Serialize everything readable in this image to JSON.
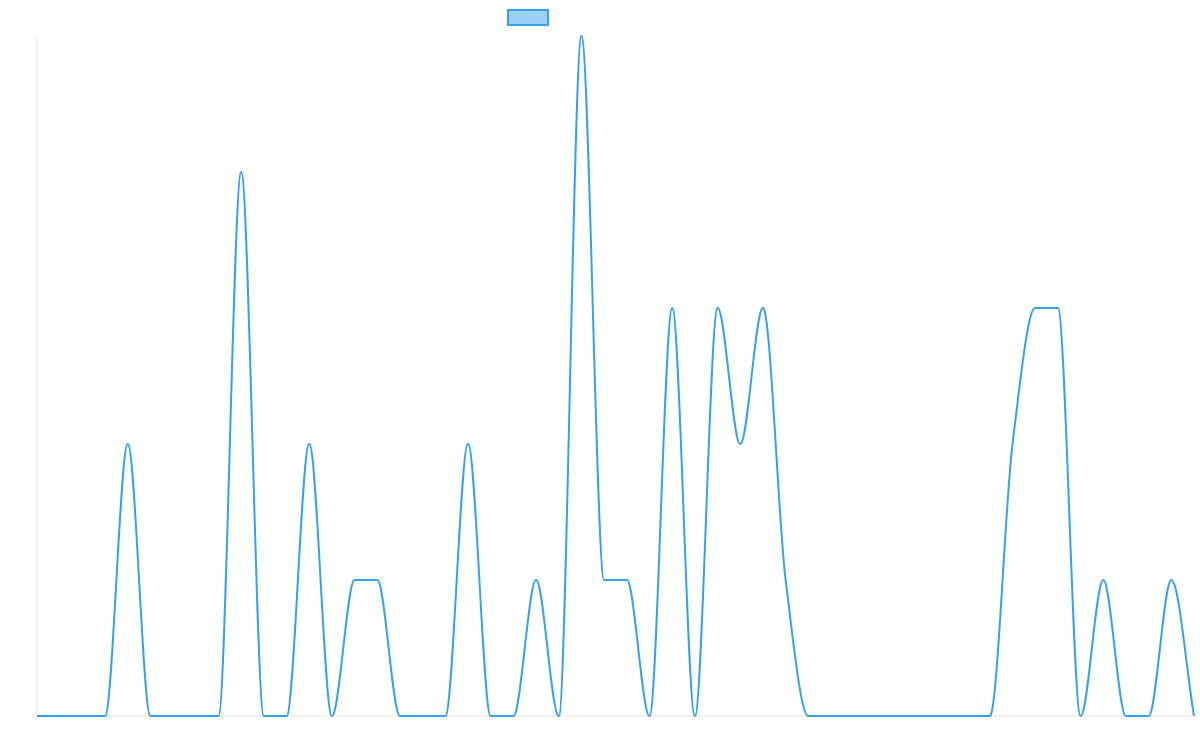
{
  "chart_data": {
    "type": "line",
    "categories": [
      null,
      null,
      null,
      null,
      null,
      null,
      null,
      null,
      null,
      null,
      null,
      null,
      null,
      null,
      null,
      null,
      null,
      null,
      null,
      null,
      null,
      null,
      null,
      null,
      null,
      null,
      null,
      null,
      null,
      null,
      null,
      null,
      null,
      null,
      null,
      null,
      null,
      null,
      null,
      null,
      null,
      null,
      null,
      null,
      null,
      null,
      null,
      null,
      null,
      null,
      null,
      null
    ],
    "series": [
      {
        "color": "#36a2eb",
        "values": [
          0,
          0,
          0,
          0,
          2,
          0,
          0,
          0,
          0,
          4,
          0,
          0,
          2,
          0,
          1,
          1,
          0,
          0,
          0,
          2,
          0,
          0,
          1,
          0,
          5,
          1,
          1,
          0,
          3,
          0,
          3,
          2,
          3,
          1,
          0,
          0,
          0,
          0,
          0,
          0,
          0,
          0,
          0,
          2,
          3,
          3,
          0,
          1,
          0,
          0,
          1,
          0
        ]
      }
    ],
    "ylim": [
      0,
      5
    ]
  }
}
